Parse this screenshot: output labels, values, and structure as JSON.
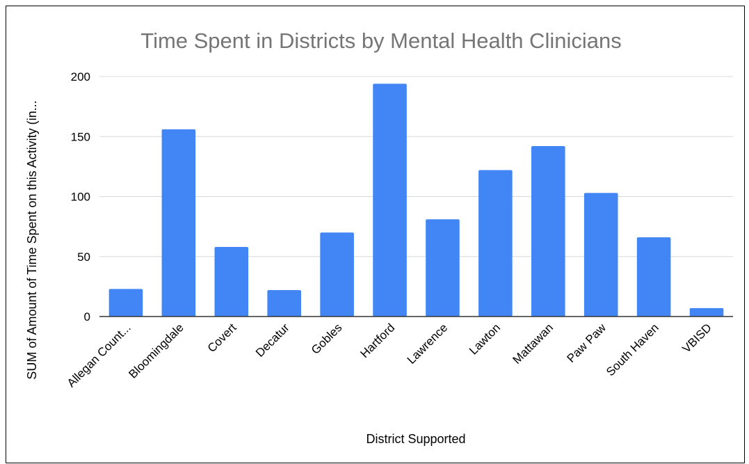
{
  "chart_data": {
    "type": "bar",
    "title": "Time Spent in Districts by Mental Health Clinicians",
    "xlabel": "District Supported",
    "ylabel": "SUM of Amount of Time Spent on this Activity (in...",
    "categories": [
      "Allegan Count...",
      "Bloomingdale",
      "Covert",
      "Decatur",
      "Gobles",
      "Hartford",
      "Lawrence",
      "Lawton",
      "Mattawan",
      "Paw Paw",
      "South Haven",
      "VBISD"
    ],
    "series": [
      {
        "values": [
          23,
          156,
          58,
          22,
          70,
          194,
          81,
          122,
          142,
          103,
          66,
          7
        ]
      }
    ],
    "ylim": [
      0,
      200
    ],
    "yticks": [
      0,
      50,
      100,
      150,
      200
    ],
    "grid": true,
    "bar_color": "#4285f4",
    "grid_color": "#d9d9d9",
    "title_color": "#757575"
  }
}
